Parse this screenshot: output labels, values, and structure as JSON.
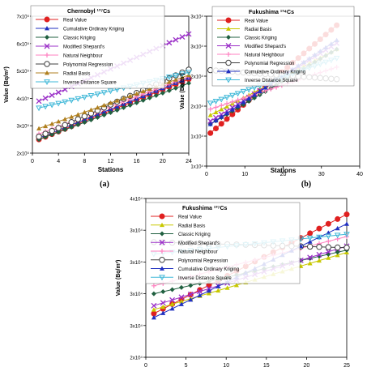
{
  "panel_labels": [
    "(a)",
    "(b)"
  ],
  "colors": {
    "real": "#e02020",
    "radial": "#c8c800",
    "classic": "#206040",
    "shepard": "#9b30c8",
    "neighbour": "#ff80c0",
    "polynomial": "#404040",
    "radial_basis_b": "#b08020",
    "cumulative": "#2030c0",
    "idw": "#40b8d8"
  },
  "chart_data": [
    {
      "type": "line",
      "title": "Chernobyl ¹³⁷Cs",
      "xlabel": "Stations",
      "ylabel": "Value (Bq/m²)",
      "xlim": [
        0,
        24
      ],
      "ylim": [
        2,
        7
      ],
      "x_ticks": [
        "0",
        "4",
        "8",
        "12",
        "16",
        "20",
        "24"
      ],
      "y_ticks": [
        "2x10⁵",
        "3x10⁵",
        "4x10⁵",
        "5x10⁵",
        "6x10⁵",
        "7x10⁵"
      ],
      "x": [
        1,
        24
      ],
      "series": [
        {
          "name": "Real Value",
          "key": "real",
          "marker": "circle",
          "values": [
            2.5,
            4.7
          ]
        },
        {
          "name": "Cumulative Ordinary Kriging",
          "key": "cumulative",
          "marker": "triangle",
          "values": [
            2.55,
            4.75
          ]
        },
        {
          "name": "Classic Kriging",
          "key": "classic",
          "marker": "diamond",
          "values": [
            2.5,
            4.55
          ]
        },
        {
          "name": "Modified Shepard's",
          "key": "shepard",
          "marker": "x",
          "values": [
            3.9,
            6.35
          ]
        },
        {
          "name": "Natural Neighbour",
          "key": "neighbour",
          "marker": "plus",
          "values": [
            2.7,
            4.8
          ]
        },
        {
          "name": "Polynomial Regression",
          "key": "polynomial",
          "marker": "ocircle",
          "values": [
            2.6,
            5.05
          ]
        },
        {
          "name": "Radial Basis",
          "key": "radial_basis_b",
          "marker": "triangle",
          "values": [
            2.9,
            4.85
          ]
        },
        {
          "name": "Inverse Distance Square",
          "key": "idw",
          "marker": "vtriangle",
          "values": [
            3.65,
            4.95
          ]
        }
      ]
    },
    {
      "type": "line",
      "title": "Fukushima ¹³⁴Cs",
      "xlabel": "Stations",
      "ylabel": "Value (Bq/m²)",
      "xlim": [
        0,
        40
      ],
      "ylim": [
        1,
        3.5
      ],
      "x_ticks": [
        "0",
        "10",
        "20",
        "30",
        "40"
      ],
      "y_ticks": [
        "1x10⁴",
        "1x10⁴",
        "2x10⁴",
        "2x10⁴",
        "3x10⁴",
        "3x10⁴"
      ],
      "x": [
        1,
        34
      ],
      "series": [
        {
          "name": "Real Value",
          "key": "real",
          "marker": "circle",
          "values": [
            1.55,
            3.35
          ]
        },
        {
          "name": "Radial Basis",
          "key": "radial",
          "marker": "triangle",
          "values": [
            1.85,
            2.95
          ]
        },
        {
          "name": "Classic Kriging",
          "key": "classic",
          "marker": "diamond",
          "values": [
            1.7,
            2.95
          ]
        },
        {
          "name": "Modified Shepard's",
          "key": "shepard",
          "marker": "x",
          "values": [
            1.75,
            3.05
          ]
        },
        {
          "name": "Natural Neighbour",
          "key": "neighbour",
          "marker": "plus",
          "values": [
            1.95,
            2.65
          ]
        },
        {
          "name": "Polynomial Regression",
          "key": "polynomial",
          "marker": "ocircle",
          "values": [
            2.6,
            2.45
          ]
        },
        {
          "name": "Cumulative Ordinary Kriging",
          "key": "cumulative",
          "marker": "triangle",
          "values": [
            1.7,
            3.1
          ]
        },
        {
          "name": "Inverse Distance Square",
          "key": "idw",
          "marker": "vtriangle",
          "values": [
            2.05,
            2.8
          ]
        }
      ]
    },
    {
      "type": "line",
      "title": "Fukushima ¹³⁷Cs",
      "xlabel": "",
      "ylabel": "Value (Bq/m²)",
      "xlim": [
        0,
        25
      ],
      "ylim": [
        2,
        4
      ],
      "x_ticks": [
        "0",
        "5",
        "10",
        "15",
        "20",
        "25"
      ],
      "y_ticks": [
        "2x10⁴",
        "3x10⁴",
        "3x10⁴",
        "3x10⁴",
        "3x10⁴",
        "4x10⁴"
      ],
      "x": [
        1,
        25
      ],
      "series": [
        {
          "name": "Real Value",
          "key": "real",
          "marker": "circle",
          "values": [
            2.55,
            3.8
          ]
        },
        {
          "name": "Radial Basis",
          "key": "radial",
          "marker": "triangle",
          "values": [
            2.6,
            3.32
          ]
        },
        {
          "name": "Classic Kriging",
          "key": "classic",
          "marker": "diamond",
          "values": [
            2.8,
            3.35
          ]
        },
        {
          "name": "Modified Shepard's",
          "key": "shepard",
          "marker": "x",
          "values": [
            2.65,
            3.4
          ]
        },
        {
          "name": "Natural Neighbour",
          "key": "neighbour",
          "marker": "plus",
          "values": [
            2.9,
            3.52
          ]
        },
        {
          "name": "Polynomial Regression",
          "key": "polynomial",
          "marker": "ocircle",
          "values": [
            3.45,
            3.38
          ]
        },
        {
          "name": "Cumulative Ordinary Kriging",
          "key": "cumulative",
          "marker": "triangle",
          "values": [
            2.5,
            3.68
          ]
        },
        {
          "name": "Inverse Distance Square",
          "key": "idw",
          "marker": "vtriangle",
          "values": [
            3.3,
            3.55
          ]
        }
      ]
    }
  ]
}
